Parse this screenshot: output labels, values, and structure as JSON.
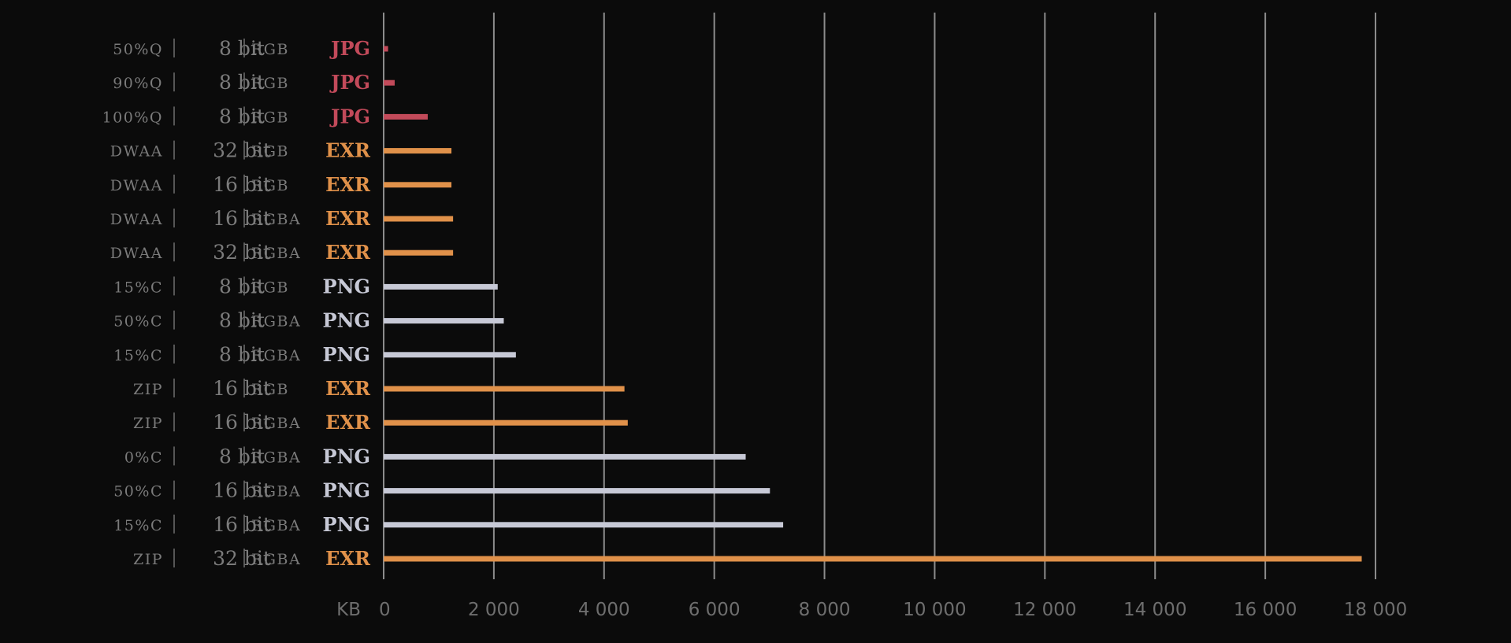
{
  "chart_data": {
    "type": "bar",
    "orientation": "horizontal",
    "title": "",
    "xlabel": "KB",
    "ylabel": "",
    "xlim": [
      0,
      18000
    ],
    "x_ticks": [
      0,
      2000,
      4000,
      6000,
      8000,
      10000,
      12000,
      14000,
      16000,
      18000
    ],
    "x_tick_labels": [
      "0",
      "2 000",
      "4 000",
      "6 000",
      "8 000",
      "10 000",
      "12 000",
      "14 000",
      "16 000",
      "18 000"
    ],
    "grid": "vertical",
    "colors": {
      "JPG": "#c24a5a",
      "EXR": "#e0914a",
      "PNG": "#c7c9d6"
    },
    "rows": [
      {
        "compression": "50%Q",
        "bits": "8 bit",
        "channels": "RGB",
        "format": "JPG",
        "value": 80
      },
      {
        "compression": "90%Q",
        "bits": "8 bit",
        "channels": "RGB",
        "format": "JPG",
        "value": 200
      },
      {
        "compression": "100%Q",
        "bits": "8 bit",
        "channels": "RGB",
        "format": "JPG",
        "value": 800
      },
      {
        "compression": "DWAA",
        "bits": "32 bit",
        "channels": "RGB",
        "format": "EXR",
        "value": 1230
      },
      {
        "compression": "DWAA",
        "bits": "16 bit",
        "channels": "RGB",
        "format": "EXR",
        "value": 1230
      },
      {
        "compression": "DWAA",
        "bits": "16 bit",
        "channels": "RGBA",
        "format": "EXR",
        "value": 1260
      },
      {
        "compression": "DWAA",
        "bits": "32 bit",
        "channels": "RGBA",
        "format": "EXR",
        "value": 1260
      },
      {
        "compression": "15%C",
        "bits": "8 bit",
        "channels": "RGB",
        "format": "PNG",
        "value": 2070
      },
      {
        "compression": "50%C",
        "bits": "8 bit",
        "channels": "RGBA",
        "format": "PNG",
        "value": 2180
      },
      {
        "compression": "15%C",
        "bits": "8 bit",
        "channels": "RGBA",
        "format": "PNG",
        "value": 2400
      },
      {
        "compression": "ZIP",
        "bits": "16 bit",
        "channels": "RGB",
        "format": "EXR",
        "value": 4370
      },
      {
        "compression": "ZIP",
        "bits": "16 bit",
        "channels": "RGBA",
        "format": "EXR",
        "value": 4430
      },
      {
        "compression": "0%C",
        "bits": "8 bit",
        "channels": "RGBA",
        "format": "PNG",
        "value": 6570
      },
      {
        "compression": "50%C",
        "bits": "16 bit",
        "channels": "RGBA",
        "format": "PNG",
        "value": 7010
      },
      {
        "compression": "15%C",
        "bits": "16 bit",
        "channels": "RGBA",
        "format": "PNG",
        "value": 7250
      },
      {
        "compression": "ZIP",
        "bits": "32 bit",
        "channels": "RGBA",
        "format": "EXR",
        "value": 17750
      }
    ]
  }
}
